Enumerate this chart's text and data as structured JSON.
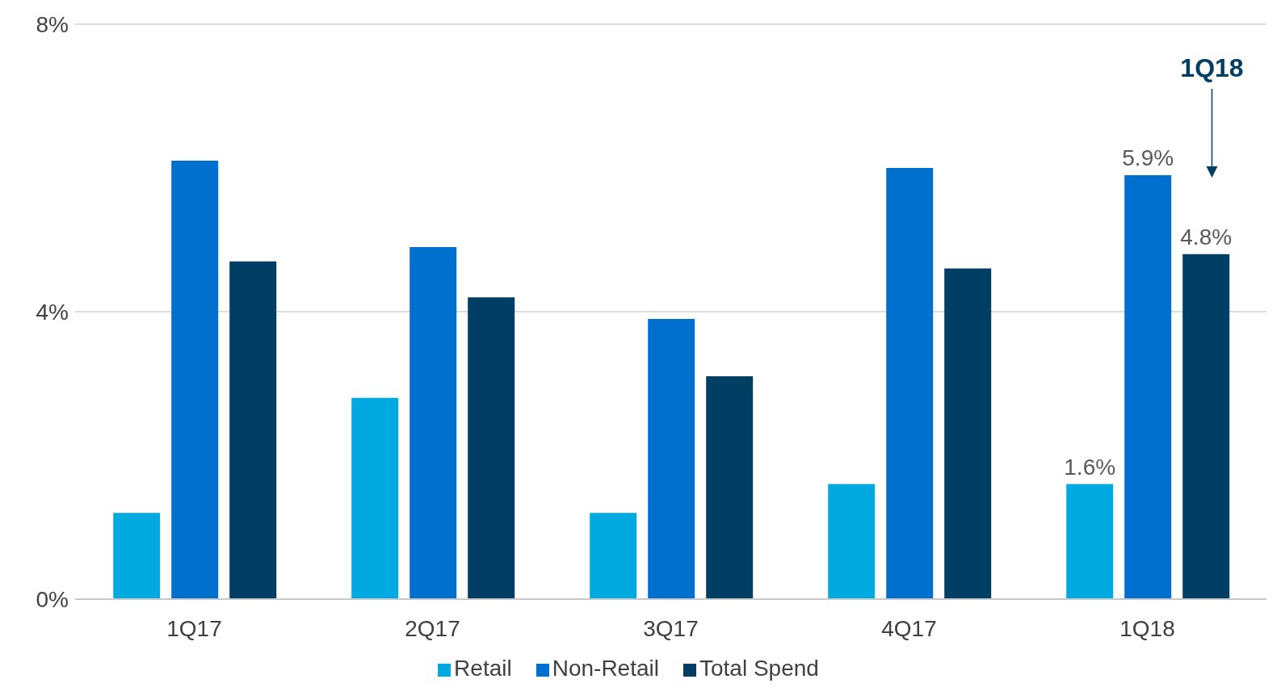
{
  "chart_data": {
    "type": "bar",
    "categories": [
      "1Q17",
      "2Q17",
      "3Q17",
      "4Q17",
      "1Q18"
    ],
    "series": [
      {
        "name": "Retail",
        "color": "#00a9e0",
        "values": [
          1.2,
          2.8,
          1.2,
          1.6,
          1.6
        ],
        "value_labels": [
          null,
          null,
          null,
          null,
          "1.6%"
        ]
      },
      {
        "name": "Non-Retail",
        "color": "#0070cf",
        "values": [
          6.1,
          4.9,
          3.9,
          6.0,
          5.9
        ],
        "value_labels": [
          null,
          null,
          null,
          null,
          "5.9%"
        ]
      },
      {
        "name": "Total Spend",
        "color": "#003f63",
        "values": [
          4.7,
          4.2,
          3.1,
          4.6,
          4.8
        ],
        "value_labels": [
          null,
          null,
          null,
          null,
          "4.8%"
        ]
      }
    ],
    "ylim": [
      0,
      8
    ],
    "yticks": [
      {
        "value": 0,
        "label": "0%"
      },
      {
        "value": 4,
        "label": "4%"
      },
      {
        "value": 8,
        "label": "8%"
      }
    ],
    "grid": "y",
    "legend": "bottom",
    "annotations": [
      "1Q18"
    ]
  }
}
